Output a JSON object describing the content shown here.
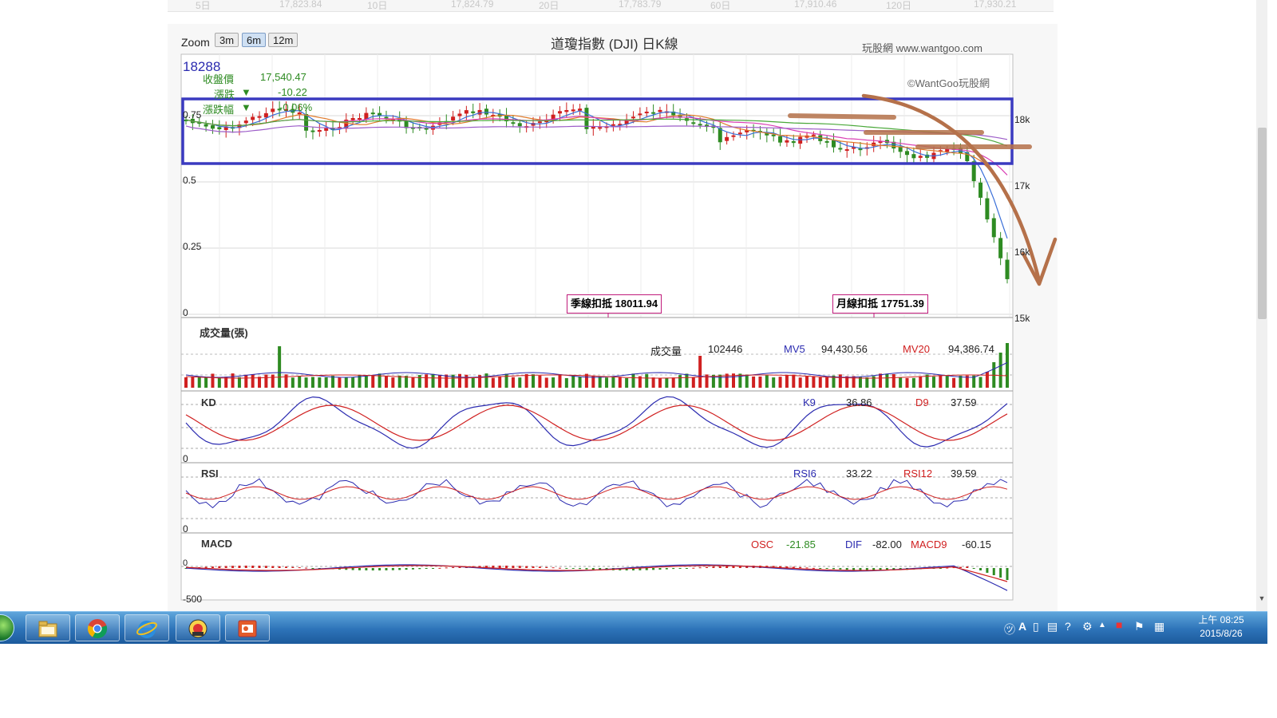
{
  "ticker": [
    "5日",
    "17,823.84",
    "10日",
    "17,824.79",
    "20日",
    "17,783.79",
    "60日",
    "17,910.46",
    "120日",
    "17,930.21"
  ],
  "zoom": {
    "label": "Zoom",
    "options": [
      {
        "label": "3m",
        "active": false
      },
      {
        "label": "6m",
        "active": true
      },
      {
        "label": "12m",
        "active": false
      }
    ]
  },
  "chart": {
    "title": "道瓊指數 (DJI) 日K線",
    "brand": "玩股網 www.wantgoo.com",
    "watermark": "©WantGoo玩股網",
    "high_label": "18288",
    "info": {
      "close_label": "收盤價",
      "close_value": "17,540.47",
      "change_label": "漲跌",
      "change_value": "-10.22",
      "pct_label": "漲跌幅",
      "pct_value": "-0.06%",
      "down_arrow": "▼"
    },
    "left_ticks": [
      "0.75",
      "0.5",
      "0.25",
      "0"
    ],
    "right_ticks": [
      "18k",
      "17k",
      "16k",
      "15k"
    ],
    "callouts": {
      "quarter": "季線扣抵 18011.94",
      "month": "月線扣抵 17751.39"
    }
  },
  "volume": {
    "title": "成交量(張)",
    "vol_label": "成交量",
    "vol_value": "102446",
    "mv5_label": "MV5",
    "mv5_value": "94,430.56",
    "mv20_label": "MV20",
    "mv20_value": "94,386.74"
  },
  "kd": {
    "title": "KD",
    "zero": "0",
    "k_label": "K9",
    "k_value": "36.86",
    "d_label": "D9",
    "d_value": "37.59"
  },
  "rsi": {
    "title": "RSI",
    "zero": "0",
    "rsi6_label": "RSI6",
    "rsi6_value": "33.22",
    "rsi12_label": "RSI12",
    "rsi12_value": "39.59"
  },
  "macd": {
    "title": "MACD",
    "low_tick": "-500",
    "top_tick": "0",
    "osc_label": "OSC",
    "osc_value": "-21.85",
    "dif_label": "DIF",
    "dif_value": "-82.00",
    "macd9_label": "MACD9",
    "macd9_value": "-60.15"
  },
  "taskbar": {
    "apps": [
      "start-orb-icon",
      "file-explorer-icon",
      "chrome-icon",
      "internet-explorer-icon",
      "trading-app-icon",
      "slideshow-app-icon"
    ],
    "clock_time": "上午 08:25",
    "clock_date": "2015/8/26"
  },
  "colors": {
    "up": "#d02020",
    "down": "#2e8b22",
    "highlight_box": "#3a3ac0",
    "annotation": "#b5714a"
  }
}
